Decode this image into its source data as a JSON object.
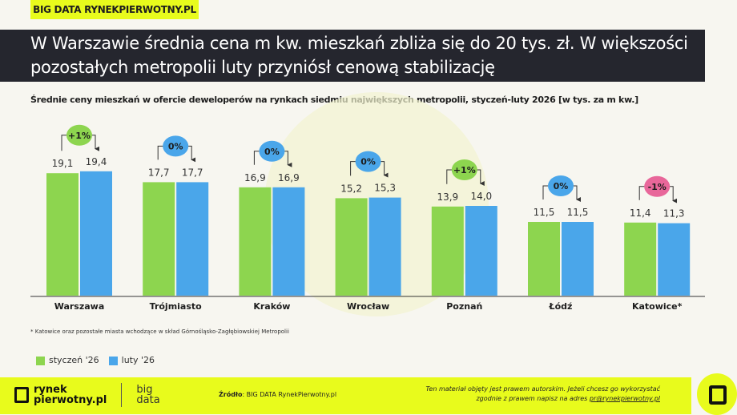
{
  "header": {
    "tag": "BIG DATA RYNEKPIERWOTNY.PL",
    "title": "W Warszawie średnia cena m kw. mieszkań zbliża się do 20 tys. zł. W większości pozostałych metropolii luty przyniósł cenową stabilizację"
  },
  "chart_data": {
    "type": "bar",
    "title": "Średnie ceny mieszkań w ofercie deweloperów na rynkach siedmiu największych metropolii, styczeń-luty 2026 [w tys. za m kw.]",
    "categories": [
      "Warszawa",
      "Trójmiasto",
      "Kraków",
      "Wrocław",
      "Poznań",
      "Łódź",
      "Katowice*"
    ],
    "series": [
      {
        "name": "styczeń '26",
        "color": "#8dd54f",
        "values": [
          19.1,
          17.7,
          16.9,
          15.2,
          13.9,
          11.5,
          11.4
        ],
        "labels": [
          "19,1",
          "17,7",
          "16,9",
          "15,2",
          "13,9",
          "11,5",
          "11,4"
        ]
      },
      {
        "name": "luty '26",
        "color": "#4aa6ea",
        "values": [
          19.4,
          17.7,
          16.9,
          15.3,
          14.0,
          11.5,
          11.3
        ],
        "labels": [
          "19,4",
          "17,7",
          "16,9",
          "15,3",
          "14,0",
          "11,5",
          "11,3"
        ]
      }
    ],
    "changes": [
      {
        "label": "+1%",
        "color": "#8dd54f"
      },
      {
        "label": "0%",
        "color": "#4aa6ea"
      },
      {
        "label": "0%",
        "color": "#4aa6ea"
      },
      {
        "label": "0%",
        "color": "#4aa6ea"
      },
      {
        "label": "+1%",
        "color": "#8dd54f"
      },
      {
        "label": "0%",
        "color": "#4aa6ea"
      },
      {
        "label": "-1%",
        "color": "#e8679a"
      }
    ],
    "ylim": [
      0,
      20
    ],
    "legend": "bottom-left",
    "grid": false
  },
  "note": "* Katowice oraz pozostałe miasta wchodzące w skład Górnośląsko-Zagłębiowskiej Metropolii",
  "footer": {
    "logo_line1": "rynek",
    "logo_line2": "pierwotny.pl",
    "logo_big": "big",
    "logo_data": "data",
    "source_label": "Źródło",
    "source_text": ": BIG DATA RynekPierwotny.pl",
    "copy_line1": "Ten materiał objęty jest prawem autorskim. Jeżeli chcesz go wykorzystać",
    "copy_line2": "zgodnie z prawem napisz na adres ",
    "copy_email": "pr@rynekpierwotny.pl"
  }
}
